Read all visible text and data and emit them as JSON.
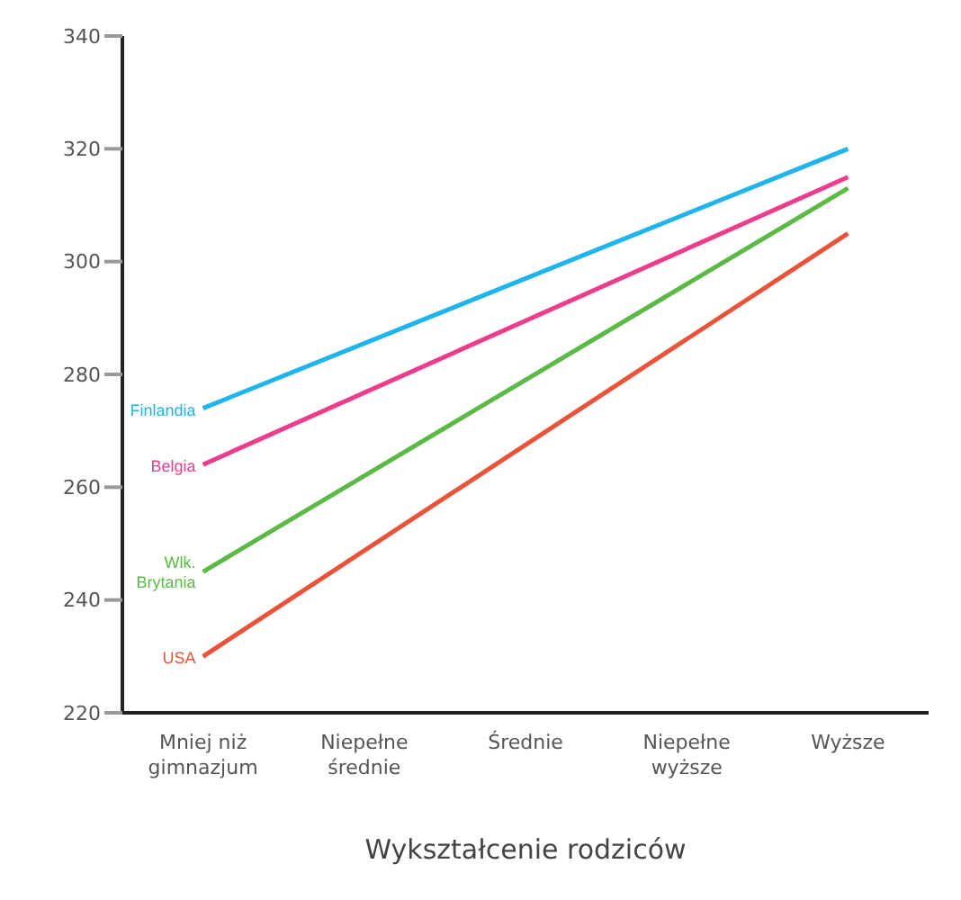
{
  "chart_data": {
    "type": "line",
    "xlabel": "Wykształcenie rodziców",
    "categories": [
      "Mniej niż gimnazjum",
      "Niepełne średnie",
      "Średnie",
      "Niepełne wyższe",
      "Wyższe"
    ],
    "series": [
      {
        "name": "Finlandia",
        "color": "#1fb4ea",
        "values": [
          274,
          null,
          null,
          null,
          320
        ]
      },
      {
        "name": "Belgia",
        "color": "#ec3c8c",
        "values": [
          264,
          null,
          null,
          null,
          315
        ]
      },
      {
        "name": "Wlk. Brytania",
        "color": "#5cb946",
        "values": [
          245,
          null,
          null,
          null,
          313
        ]
      },
      {
        "name": "USA",
        "color": "#e8543a",
        "values": [
          230,
          null,
          null,
          null,
          305
        ]
      }
    ],
    "ylim": [
      220,
      340
    ],
    "yticks": [
      220,
      240,
      260,
      280,
      300,
      320,
      340
    ],
    "grid": false,
    "legend": false,
    "marker": "none",
    "line_style": "solid"
  }
}
